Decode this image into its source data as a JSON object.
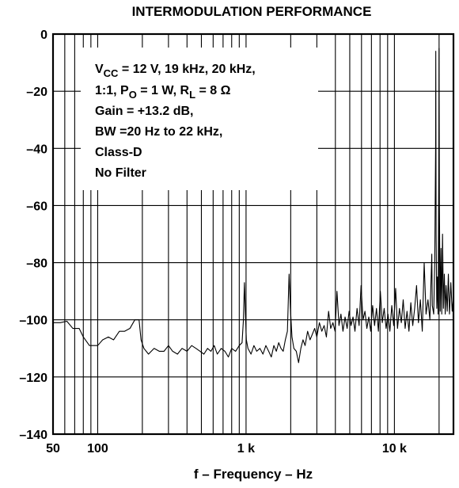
{
  "chart_data": {
    "type": "line",
    "title": "INTERMODULATION PERFORMANCE",
    "xlabel": "f – Frequency – Hz",
    "ylabel": "",
    "xscale": "log",
    "xlim": [
      50,
      25000
    ],
    "ylim": [
      -140,
      0
    ],
    "grid": true,
    "x_ticks": [
      {
        "value": 50,
        "label": "50"
      },
      {
        "value": 100,
        "label": "100"
      },
      {
        "value": 1000,
        "label": "1 k"
      },
      {
        "value": 10000,
        "label": "10 k"
      }
    ],
    "y_ticks": [
      {
        "value": 0,
        "label": "0"
      },
      {
        "value": -20,
        "label": "–20"
      },
      {
        "value": -40,
        "label": "–40"
      },
      {
        "value": -60,
        "label": "–60"
      },
      {
        "value": -80,
        "label": "–80"
      },
      {
        "value": -100,
        "label": "–100"
      },
      {
        "value": -120,
        "label": "–120"
      },
      {
        "value": -140,
        "label": "–140"
      }
    ],
    "annotation": {
      "line1": {
        "v": "V",
        "vsub": "CC",
        "rest": " = 12 V, 19 kHz, 20 kHz,"
      },
      "line2": {
        "a": "1:1,  P",
        "psub": "O",
        "b": " = 1 W, R",
        "rsub": "L",
        "c": " = 8 Ω"
      },
      "line3": "Gain =  +13.2 dB,",
      "line4": "BW =20 Hz to 22 kHz,",
      "line5": "Class-D",
      "line6": "No Filter"
    },
    "series": [
      {
        "color": "#000000",
        "points": [
          [
            50,
            -101
          ],
          [
            56,
            -101
          ],
          [
            62,
            -100.5
          ],
          [
            68,
            -103
          ],
          [
            75,
            -103
          ],
          [
            80,
            -106
          ],
          [
            88,
            -109
          ],
          [
            100,
            -109
          ],
          [
            108,
            -107
          ],
          [
            118,
            -106
          ],
          [
            128,
            -107
          ],
          [
            140,
            -104
          ],
          [
            152,
            -104
          ],
          [
            165,
            -103
          ],
          [
            178,
            -100
          ],
          [
            190,
            -100
          ],
          [
            196,
            -107
          ],
          [
            205,
            -110
          ],
          [
            220,
            -112
          ],
          [
            240,
            -110
          ],
          [
            260,
            -111
          ],
          [
            280,
            -111
          ],
          [
            300,
            -109
          ],
          [
            320,
            -111
          ],
          [
            345,
            -112
          ],
          [
            370,
            -110
          ],
          [
            400,
            -111
          ],
          [
            430,
            -109
          ],
          [
            460,
            -110
          ],
          [
            490,
            -111
          ],
          [
            520,
            -112
          ],
          [
            550,
            -110
          ],
          [
            580,
            -111
          ],
          [
            610,
            -109
          ],
          [
            640,
            -112
          ],
          [
            680,
            -110
          ],
          [
            720,
            -111
          ],
          [
            760,
            -113
          ],
          [
            800,
            -110
          ],
          [
            850,
            -111
          ],
          [
            900,
            -109
          ],
          [
            940,
            -108
          ],
          [
            960,
            -100
          ],
          [
            975,
            -87
          ],
          [
            990,
            -98
          ],
          [
            1005,
            -107
          ],
          [
            1030,
            -110
          ],
          [
            1080,
            -112
          ],
          [
            1130,
            -109
          ],
          [
            1180,
            -111
          ],
          [
            1240,
            -110
          ],
          [
            1300,
            -112
          ],
          [
            1360,
            -109
          ],
          [
            1420,
            -111
          ],
          [
            1480,
            -113
          ],
          [
            1540,
            -109
          ],
          [
            1600,
            -111
          ],
          [
            1660,
            -108
          ],
          [
            1720,
            -110
          ],
          [
            1780,
            -111
          ],
          [
            1840,
            -107
          ],
          [
            1900,
            -104
          ],
          [
            1950,
            -84
          ],
          [
            1990,
            -96
          ],
          [
            2040,
            -106
          ],
          [
            2100,
            -110
          ],
          [
            2180,
            -111
          ],
          [
            2260,
            -115
          ],
          [
            2340,
            -110
          ],
          [
            2420,
            -107
          ],
          [
            2500,
            -109
          ],
          [
            2600,
            -104
          ],
          [
            2700,
            -107
          ],
          [
            2800,
            -105
          ],
          [
            2900,
            -103
          ],
          [
            3000,
            -106
          ],
          [
            3120,
            -101
          ],
          [
            3240,
            -104
          ],
          [
            3360,
            -102
          ],
          [
            3480,
            -106
          ],
          [
            3600,
            -97
          ],
          [
            3720,
            -103
          ],
          [
            3850,
            -101
          ],
          [
            3980,
            -104
          ],
          [
            4100,
            -90
          ],
          [
            4230,
            -102
          ],
          [
            4360,
            -98
          ],
          [
            4500,
            -104
          ],
          [
            4650,
            -99
          ],
          [
            4800,
            -103
          ],
          [
            4950,
            -97
          ],
          [
            5100,
            -102
          ],
          [
            5260,
            -99
          ],
          [
            5420,
            -104
          ],
          [
            5600,
            -96
          ],
          [
            5780,
            -102
          ],
          [
            5960,
            -88
          ],
          [
            6140,
            -100
          ],
          [
            6330,
            -97
          ],
          [
            6520,
            -103
          ],
          [
            6720,
            -99
          ],
          [
            6920,
            -104
          ],
          [
            7130,
            -95
          ],
          [
            7350,
            -102
          ],
          [
            7570,
            -96
          ],
          [
            7800,
            -104
          ],
          [
            8040,
            -90
          ],
          [
            8280,
            -101
          ],
          [
            8530,
            -96
          ],
          [
            8790,
            -103
          ],
          [
            9050,
            -98
          ],
          [
            9320,
            -104
          ],
          [
            9600,
            -95
          ],
          [
            9890,
            -102
          ],
          [
            10190,
            -89
          ],
          [
            10490,
            -103
          ],
          [
            10810,
            -96
          ],
          [
            11130,
            -101
          ],
          [
            11460,
            -93
          ],
          [
            11810,
            -103
          ],
          [
            12160,
            -97
          ],
          [
            12530,
            -104
          ],
          [
            12900,
            -94
          ],
          [
            13290,
            -102
          ],
          [
            13690,
            -96
          ],
          [
            14100,
            -88
          ],
          [
            14520,
            -101
          ],
          [
            14960,
            -93
          ],
          [
            15410,
            -104
          ],
          [
            15870,
            -80
          ],
          [
            16340,
            -98
          ],
          [
            16830,
            -93
          ],
          [
            17340,
            -100
          ],
          [
            17860,
            -77
          ],
          [
            18000,
            -95
          ],
          [
            18400,
            -98
          ],
          [
            18700,
            -80
          ],
          [
            18950,
            -40
          ],
          [
            19000,
            -6
          ],
          [
            19100,
            -70
          ],
          [
            19300,
            -96
          ],
          [
            19500,
            -85
          ],
          [
            19700,
            -98
          ],
          [
            19900,
            -50
          ],
          [
            20000,
            -5
          ],
          [
            20100,
            -60
          ],
          [
            20350,
            -97
          ],
          [
            20600,
            -75
          ],
          [
            20850,
            -98
          ],
          [
            21100,
            -70
          ],
          [
            21400,
            -96
          ],
          [
            21700,
            -84
          ],
          [
            22000,
            -98
          ],
          [
            22300,
            -88
          ],
          [
            22700,
            -97
          ],
          [
            23100,
            -84
          ],
          [
            23500,
            -98
          ],
          [
            24000,
            -87
          ],
          [
            24500,
            -97
          ],
          [
            25000,
            -92
          ]
        ]
      }
    ]
  }
}
